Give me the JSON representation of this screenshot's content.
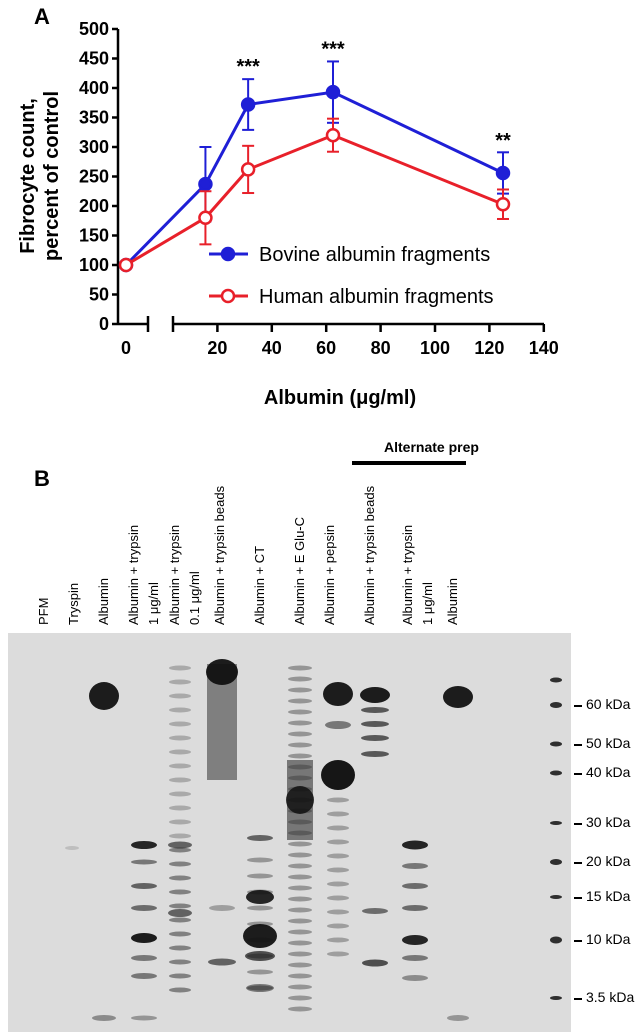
{
  "panel_a_letter": "A",
  "panel_b_letter": "B",
  "chart_data": {
    "type": "line",
    "title": "",
    "ylabel_line1": "Fibrocyte count,",
    "ylabel_line2": "percent of control",
    "xlabel": "Albumin (μg/ml)",
    "ylim": [
      0,
      500
    ],
    "yticks": [
      0,
      50,
      100,
      150,
      200,
      250,
      300,
      350,
      400,
      450,
      500
    ],
    "xticks": [
      0,
      20,
      40,
      60,
      80,
      100,
      120,
      140
    ],
    "x_axis_break": true,
    "grid": false,
    "legend_position": "lower-right",
    "series": [
      {
        "name": "Bovine albumin fragments",
        "color": "#1f1fd6",
        "marker": "filled-circle",
        "x": [
          0,
          15.6,
          31.3,
          62.5,
          125
        ],
        "y": [
          100,
          237,
          372,
          393,
          256
        ],
        "err": [
          0,
          63,
          43,
          52,
          35
        ]
      },
      {
        "name": "Human albumin fragments",
        "color": "#e8202a",
        "marker": "open-circle",
        "x": [
          0,
          15.6,
          31.3,
          62.5,
          125
        ],
        "y": [
          100,
          180,
          262,
          320,
          203
        ],
        "err": [
          0,
          45,
          40,
          28,
          25
        ]
      }
    ],
    "annotations": [
      {
        "x": 31.3,
        "y": 415,
        "text": "***"
      },
      {
        "x": 62.5,
        "y": 445,
        "text": "***"
      },
      {
        "x": 125,
        "y": 290,
        "text": "**"
      }
    ]
  },
  "gel": {
    "group_label": "Alternate prep",
    "lanes": [
      {
        "label_line1": "PFM",
        "label_line2": ""
      },
      {
        "label_line1": "Tryspin",
        "label_line2": ""
      },
      {
        "label_line1": "Albumin",
        "label_line2": ""
      },
      {
        "label_line1": "Albumin + trypsin",
        "label_line2": "1 μg/ml"
      },
      {
        "label_line1": "Albumin + trypsin",
        "label_line2": "0.1 μg/ml"
      },
      {
        "label_line1": "Albumin + trypsin beads",
        "label_line2": ""
      },
      {
        "label_line1": "Albumin + CT",
        "label_line2": ""
      },
      {
        "label_line1": "Albumin + E Glu-C",
        "label_line2": ""
      },
      {
        "label_line1": "Albumin + pepsin",
        "label_line2": ""
      },
      {
        "label_line1": "Albumin + trypsin beads",
        "label_line2": ""
      },
      {
        "label_line1": "Albumin + trypsin",
        "label_line2": "1 μg/ml"
      },
      {
        "label_line1": "Albumin",
        "label_line2": ""
      }
    ],
    "markers": [
      "60 kDa",
      "50 kDa",
      "40 kDa",
      "30 kDa",
      "20 kDa",
      "15 kDa",
      "10 kDa",
      "3.5 kDa"
    ]
  }
}
